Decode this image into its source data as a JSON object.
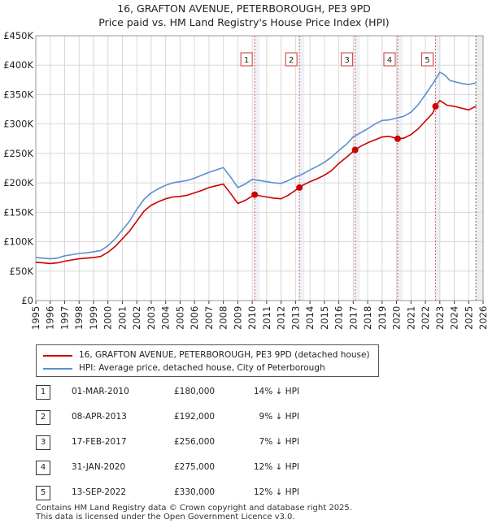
{
  "title": "16, GRAFTON AVENUE, PETERBOROUGH, PE3 9PD",
  "subtitle": "Price paid vs. HM Land Registry's House Price Index (HPI)",
  "colors": {
    "property": "#cc0000",
    "hpi": "#5b8fd1",
    "marker_bg": "#eef1f8"
  },
  "chart_data": {
    "type": "line",
    "title": "16, GRAFTON AVENUE, PETERBOROUGH, PE3 9PD",
    "subtitle": "Price paid vs. HM Land Registry's House Price Index (HPI)",
    "xlabel": "",
    "ylabel": "",
    "xlim": [
      1995,
      2026
    ],
    "ylim": [
      0,
      450000
    ],
    "y_ticks": [
      {
        "value": 0,
        "label": "£0"
      },
      {
        "value": 50000,
        "label": "£50K"
      },
      {
        "value": 100000,
        "label": "£100K"
      },
      {
        "value": 150000,
        "label": "£150K"
      },
      {
        "value": 200000,
        "label": "£200K"
      },
      {
        "value": 250000,
        "label": "£250K"
      },
      {
        "value": 300000,
        "label": "£300K"
      },
      {
        "value": 350000,
        "label": "£350K"
      },
      {
        "value": 400000,
        "label": "£400K"
      },
      {
        "value": 450000,
        "label": "£450K"
      }
    ],
    "x_ticks": [
      "1995",
      "1996",
      "1997",
      "1998",
      "1999",
      "2000",
      "2001",
      "2002",
      "2003",
      "2004",
      "2005",
      "2006",
      "2007",
      "2008",
      "2009",
      "2010",
      "2011",
      "2012",
      "2013",
      "2014",
      "2015",
      "2016",
      "2017",
      "2018",
      "2019",
      "2020",
      "2021",
      "2022",
      "2023",
      "2024",
      "2025",
      "2026"
    ],
    "grid": true,
    "legend_position": "below",
    "series": [
      {
        "name": "16, GRAFTON AVENUE, PETERBOROUGH, PE3 9PD (detached house)",
        "color": "#cc0000",
        "x": [
          1995.0,
          1995.5,
          1996.0,
          1996.5,
          1997.0,
          1997.5,
          1998.0,
          1998.5,
          1999.0,
          1999.5,
          2000.0,
          2000.5,
          2001.0,
          2001.5,
          2002.0,
          2002.5,
          2003.0,
          2003.5,
          2004.0,
          2004.5,
          2005.0,
          2005.5,
          2006.0,
          2006.5,
          2007.0,
          2007.5,
          2008.0,
          2008.5,
          2009.0,
          2009.5,
          2010.17,
          2010.5,
          2011.0,
          2011.5,
          2012.0,
          2012.5,
          2013.27,
          2013.5,
          2014.0,
          2014.5,
          2015.0,
          2015.5,
          2016.0,
          2016.5,
          2017.13,
          2017.5,
          2018.0,
          2018.5,
          2019.0,
          2019.5,
          2020.08,
          2020.5,
          2021.0,
          2021.5,
          2022.0,
          2022.5,
          2022.7,
          2023.0,
          2023.5,
          2024.0,
          2024.5,
          2025.0,
          2025.5
        ],
        "y": [
          65000,
          64000,
          63000,
          64000,
          67000,
          69000,
          71000,
          72000,
          73000,
          75000,
          82000,
          92000,
          105000,
          118000,
          135000,
          152000,
          162000,
          168000,
          173000,
          176000,
          177000,
          179000,
          183000,
          187000,
          192000,
          195000,
          198000,
          182000,
          165000,
          170000,
          180000,
          178000,
          176000,
          174000,
          173000,
          179000,
          192000,
          196000,
          202000,
          207000,
          213000,
          221000,
          233000,
          243000,
          256000,
          262000,
          268000,
          273000,
          278000,
          279000,
          275000,
          276000,
          282000,
          292000,
          305000,
          318000,
          330000,
          340000,
          332000,
          330000,
          327000,
          324000,
          330000
        ]
      },
      {
        "name": "HPI: Average price, detached house, City of Peterborough",
        "color": "#5b8fd1",
        "x": [
          1995.0,
          1995.5,
          1996.0,
          1996.5,
          1997.0,
          1997.5,
          1998.0,
          1998.5,
          1999.0,
          1999.5,
          2000.0,
          2000.5,
          2001.0,
          2001.5,
          2002.0,
          2002.5,
          2003.0,
          2003.5,
          2004.0,
          2004.5,
          2005.0,
          2005.5,
          2006.0,
          2006.5,
          2007.0,
          2007.5,
          2008.0,
          2008.5,
          2009.0,
          2009.5,
          2010.0,
          2010.5,
          2011.0,
          2011.5,
          2012.0,
          2012.5,
          2013.0,
          2013.5,
          2014.0,
          2014.5,
          2015.0,
          2015.5,
          2016.0,
          2016.5,
          2017.0,
          2017.5,
          2018.0,
          2018.5,
          2019.0,
          2019.5,
          2020.0,
          2020.5,
          2021.0,
          2021.5,
          2022.0,
          2022.5,
          2023.0,
          2023.3,
          2023.7,
          2024.0,
          2024.5,
          2025.0,
          2025.5
        ],
        "y": [
          73000,
          72000,
          71000,
          72000,
          76000,
          78000,
          80000,
          81000,
          83000,
          85000,
          93000,
          105000,
          120000,
          135000,
          155000,
          172000,
          183000,
          190000,
          196000,
          200000,
          202000,
          204000,
          208000,
          213000,
          218000,
          222000,
          226000,
          210000,
          192000,
          198000,
          206000,
          204000,
          202000,
          200000,
          199000,
          204000,
          210000,
          215000,
          222000,
          228000,
          235000,
          244000,
          255000,
          265000,
          278000,
          285000,
          292000,
          300000,
          306000,
          307000,
          310000,
          313000,
          320000,
          333000,
          350000,
          368000,
          388000,
          384000,
          374000,
          372000,
          369000,
          367000,
          370000
        ]
      }
    ],
    "sales": [
      {
        "label": "1",
        "x": 2010.17,
        "y": 180000
      },
      {
        "label": "2",
        "x": 2013.27,
        "y": 192000
      },
      {
        "label": "3",
        "x": 2017.13,
        "y": 256000
      },
      {
        "label": "4",
        "x": 2020.08,
        "y": 275000
      },
      {
        "label": "5",
        "x": 2022.7,
        "y": 330000
      }
    ],
    "projection_start": 2025.5
  },
  "legend": {
    "property_label": "16, GRAFTON AVENUE, PETERBOROUGH, PE3 9PD (detached house)",
    "hpi_label": "HPI: Average price, detached house, City of Peterborough"
  },
  "sales_table": [
    {
      "num": "1",
      "date": "01-MAR-2010",
      "price": "£180,000",
      "hpi": "14% ↓ HPI"
    },
    {
      "num": "2",
      "date": "08-APR-2013",
      "price": "£192,000",
      "hpi": "9% ↓ HPI"
    },
    {
      "num": "3",
      "date": "17-FEB-2017",
      "price": "£256,000",
      "hpi": "7% ↓ HPI"
    },
    {
      "num": "4",
      "date": "31-JAN-2020",
      "price": "£275,000",
      "hpi": "12% ↓ HPI"
    },
    {
      "num": "5",
      "date": "13-SEP-2022",
      "price": "£330,000",
      "hpi": "12% ↓ HPI"
    }
  ],
  "footer": {
    "line1": "Contains HM Land Registry data © Crown copyright and database right 2025.",
    "line2": "This data is licensed under the Open Government Licence v3.0."
  }
}
